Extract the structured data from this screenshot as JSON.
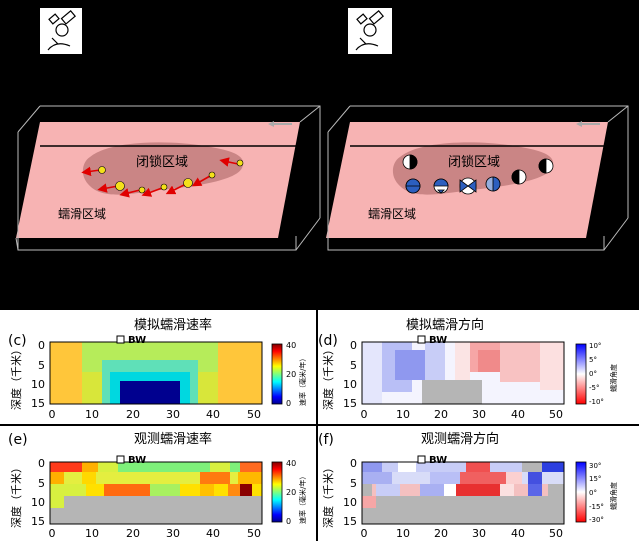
{
  "colors": {
    "background": "#000000",
    "fault_plane": "#f7b3b3",
    "locked_zone": "#c27c7c",
    "arrow_red": "#e00000",
    "box_line": "#bbbbbb",
    "grey_mask": "#b5b5b5"
  },
  "top_panels": [
    {
      "locked_label": "闭锁区域",
      "creep_label": "蠕滑区域",
      "markers": "slip-vectors"
    },
    {
      "locked_label": "闭锁区域",
      "creep_label": "蠕滑区域",
      "markers": "focal-mechanisms"
    }
  ],
  "panels": {
    "c": {
      "letter": "(c)",
      "title": "模拟蠕滑速率",
      "station": "BW",
      "ylabel": "深度（千米）",
      "x_ticks": [
        "0",
        "10",
        "20",
        "30",
        "40",
        "50"
      ],
      "y_ticks": [
        "0",
        "5",
        "10",
        "15"
      ],
      "colorbar_ticks": [
        "40",
        "20",
        "0"
      ],
      "colorbar_label": "速率（毫米/年）",
      "colormap": "jet"
    },
    "d": {
      "letter": "(d)",
      "title": "模拟蠕滑方向",
      "station": "BW",
      "ylabel": "深度（千米）",
      "x_ticks": [
        "0",
        "10",
        "20",
        "30",
        "40",
        "50"
      ],
      "y_ticks": [
        "0",
        "5",
        "10",
        "15"
      ],
      "colorbar_ticks": [
        "10°",
        "5°",
        "0°",
        "-5°",
        "-10°"
      ],
      "colorbar_label": "蠕滑角度",
      "colormap": "bwr"
    },
    "e": {
      "letter": "(e)",
      "title": "观测蠕滑速率",
      "station": "BW",
      "ylabel": "深度（千米）",
      "x_ticks": [
        "0",
        "10",
        "20",
        "30",
        "40",
        "50"
      ],
      "y_ticks": [
        "0",
        "5",
        "10",
        "15"
      ],
      "colorbar_ticks": [
        "40",
        "20",
        "0"
      ],
      "colorbar_label": "速率（毫米/年）",
      "colormap": "jet"
    },
    "f": {
      "letter": "(f)",
      "title": "观测蠕滑方向",
      "station": "BW",
      "ylabel": "深度（千米）",
      "x_ticks": [
        "0",
        "10",
        "20",
        "30",
        "40",
        "50"
      ],
      "y_ticks": [
        "0",
        "5",
        "10",
        "15"
      ],
      "colorbar_ticks": [
        "30°",
        "15°",
        "0°",
        "-15°",
        "-30°"
      ],
      "colorbar_label": "蠕滑角度",
      "colormap": "bwr"
    }
  }
}
